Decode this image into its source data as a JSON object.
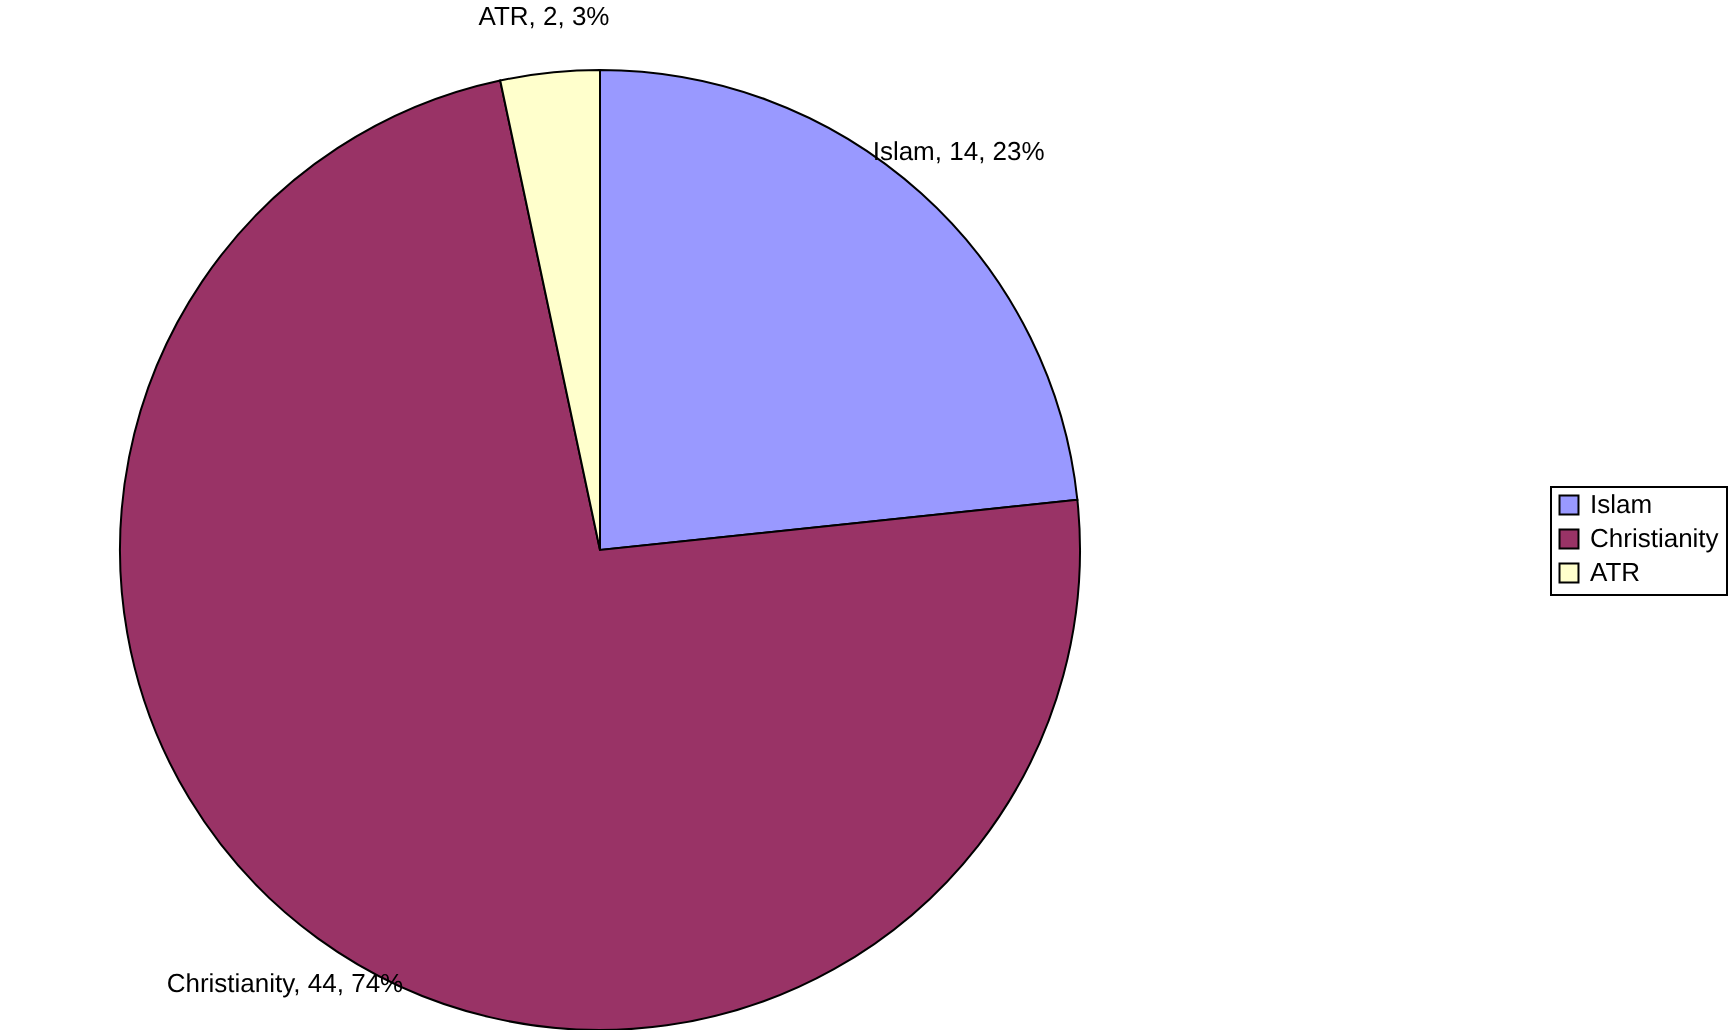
{
  "chart_data": {
    "type": "pie",
    "categories": [
      "Islam",
      "Christianity",
      "ATR"
    ],
    "values": [
      14,
      44,
      2
    ],
    "colors": [
      "#9999ff",
      "#993366",
      "#ffffcc"
    ],
    "value_labels": [
      "Islam, 14, 23%",
      "Christianity, 44, 74%",
      "ATR, 2, 3%"
    ],
    "legend": "right"
  }
}
